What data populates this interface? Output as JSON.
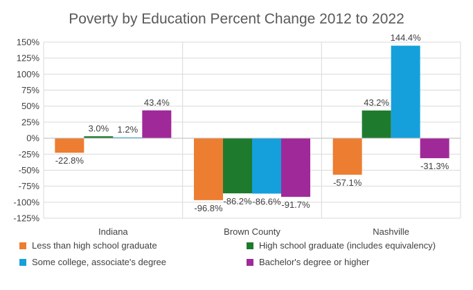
{
  "chart_data": {
    "type": "bar",
    "title": "Poverty by Education Percent Change 2012 to 2022",
    "categories": [
      "Indiana",
      "Brown County",
      "Nashville"
    ],
    "ylim": [
      -125,
      150
    ],
    "yticks": [
      -125,
      -100,
      -75,
      -50,
      -25,
      0,
      25,
      50,
      75,
      100,
      125,
      150
    ],
    "ytick_labels": [
      "-125%",
      "-100%",
      "-75%",
      "-50%",
      "-25%",
      "0%",
      "25%",
      "50%",
      "75%",
      "100%",
      "125%",
      "150%"
    ],
    "grid": true,
    "legend_position": "bottom",
    "series": [
      {
        "name": "Less than high school graduate",
        "color": "#ED7D31",
        "values": [
          -22.8,
          -96.8,
          -57.1
        ],
        "labels": [
          "-22.8%",
          "-96.8%",
          "-57.1%"
        ]
      },
      {
        "name": "High school graduate (includes equivalency)",
        "color": "#1E7B2E",
        "values": [
          3.0,
          -86.2,
          43.2
        ],
        "labels": [
          "3.0%",
          "-86.2%",
          "43.2%"
        ]
      },
      {
        "name": "Some college, associate's degree",
        "color": "#15A0DB",
        "values": [
          1.2,
          -86.6,
          144.4
        ],
        "labels": [
          "1.2%",
          "-86.6%",
          "144.4%"
        ]
      },
      {
        "name": "Bachelor's degree or higher",
        "color": "#A0299A",
        "values": [
          43.4,
          -91.7,
          -31.3
        ],
        "labels": [
          "43.4%",
          "-91.7%",
          "-31.3%"
        ]
      }
    ]
  }
}
